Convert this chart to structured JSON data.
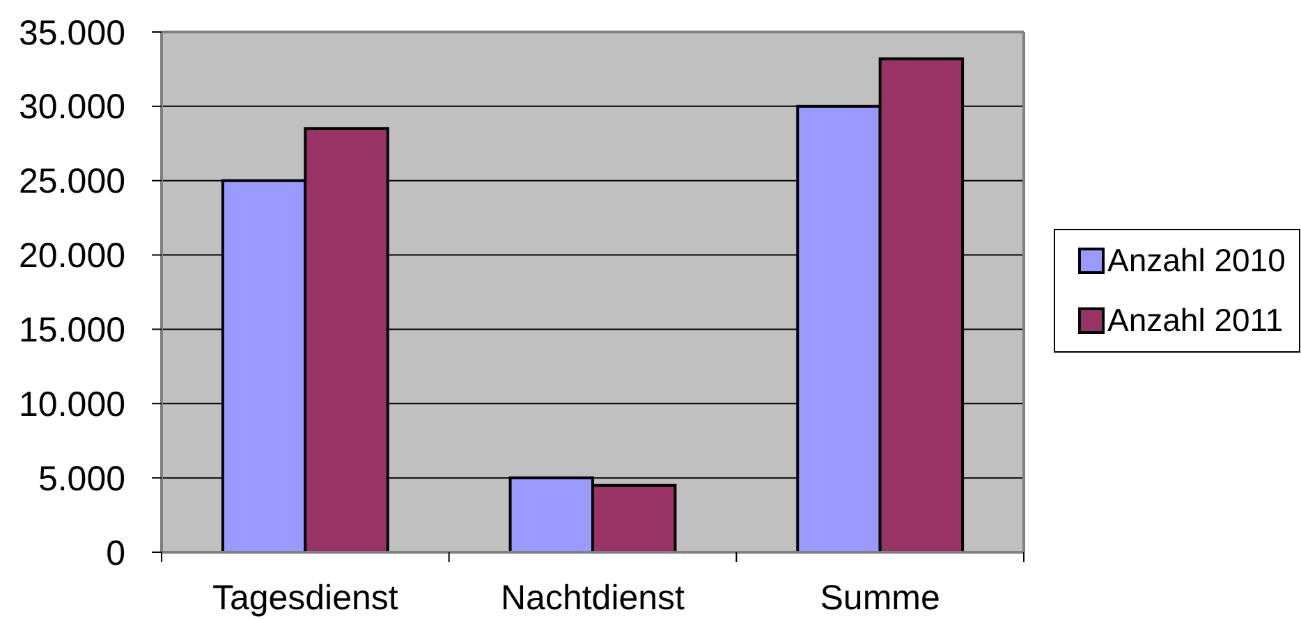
{
  "chart_data": {
    "type": "bar",
    "categories": [
      "Tagesdienst",
      "Nachtdienst",
      "Summe"
    ],
    "series": [
      {
        "name": "Anzahl 2010",
        "color": "#9999ff",
        "values": [
          25000,
          5000,
          30000
        ]
      },
      {
        "name": "Anzahl 2011",
        "color": "#993366",
        "values": [
          28500,
          4500,
          33200
        ]
      }
    ],
    "ylim": [
      0,
      35000
    ],
    "yticks": [
      {
        "value": 0,
        "label": "0"
      },
      {
        "value": 5000,
        "label": "5.000"
      },
      {
        "value": 10000,
        "label": "10.000"
      },
      {
        "value": 15000,
        "label": "15.000"
      },
      {
        "value": 20000,
        "label": "20.000"
      },
      {
        "value": 25000,
        "label": "25.000"
      },
      {
        "value": 30000,
        "label": "30.000"
      },
      {
        "value": 35000,
        "label": "35.000"
      }
    ],
    "grid": "y",
    "legend": "right"
  }
}
